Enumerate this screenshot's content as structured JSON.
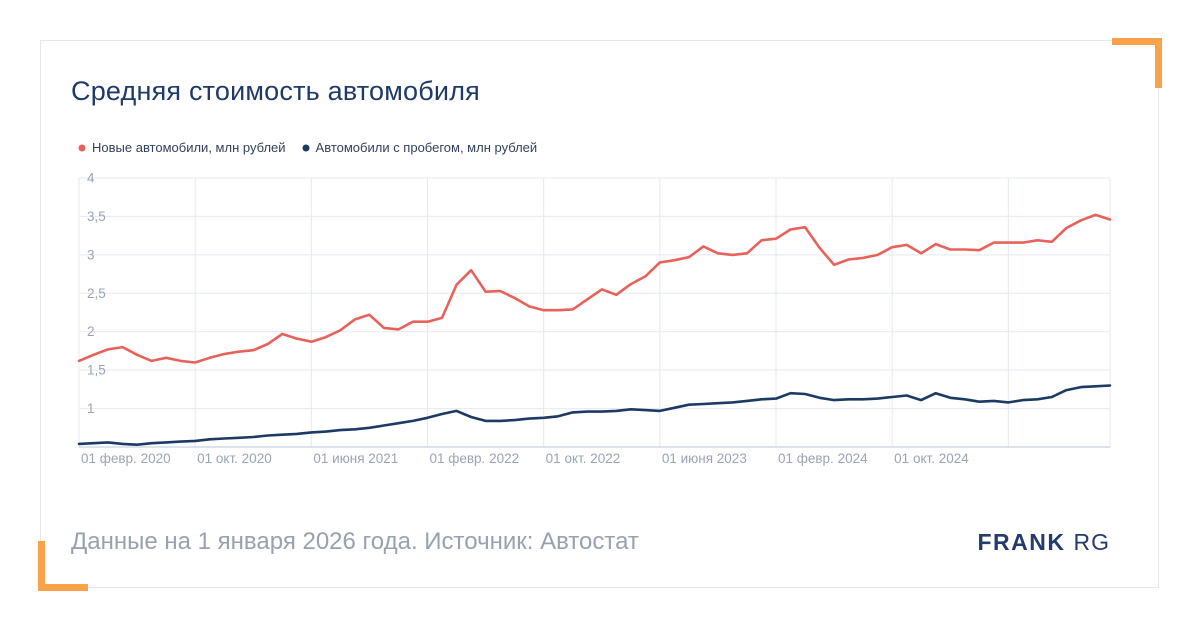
{
  "title": "Средняя стоимость автомобиля",
  "legend": [
    {
      "label": "Новые автомобили, млн рублей",
      "color": "#E8625C"
    },
    {
      "label": "Автомобили с пробегом, млн рублей",
      "color": "#1C3A64"
    }
  ],
  "footer": {
    "caption": "Данные на 1 января 2026 года. Источник: Автостат",
    "logo_bold": "FRANK",
    "logo_light": "RG"
  },
  "colors": {
    "accent_orange": "#F9A24A",
    "new_cars_red": "#E8625C",
    "used_cars_navy": "#1C3A64",
    "grid": "#E4E9F1",
    "axis_line": "#C9D1DD",
    "axis_text": "#9AA4B5",
    "title_navy": "#1F3A68",
    "caption_gray": "#99A1B0"
  },
  "chart_data": {
    "type": "line",
    "title": "Средняя стоимость автомобиля",
    "x_unit": "month",
    "x_start": "2020-02",
    "x_end": "2026-01",
    "ylim": [
      0.5,
      4
    ],
    "grid": true,
    "legend_position": "top-left",
    "y_ticks": [
      {
        "value": 4,
        "label": "4"
      },
      {
        "value": 3.5,
        "label": "3,5"
      },
      {
        "value": 3,
        "label": "3"
      },
      {
        "value": 2.5,
        "label": "2,5"
      },
      {
        "value": 2,
        "label": "2"
      },
      {
        "value": 1.5,
        "label": "1,5"
      },
      {
        "value": 1,
        "label": "1"
      }
    ],
    "x_ticks": [
      {
        "index": 0,
        "label": "01 февр. 2020"
      },
      {
        "index": 8,
        "label": "01 окт. 2020"
      },
      {
        "index": 16,
        "label": "01 июня 2021"
      },
      {
        "index": 24,
        "label": "01 февр. 2022"
      },
      {
        "index": 32,
        "label": "01 окт. 2022"
      },
      {
        "index": 40,
        "label": "01 июня 2023"
      },
      {
        "index": 48,
        "label": "01 февр. 2024"
      },
      {
        "index": 56,
        "label": "01 окт. 2024"
      },
      {
        "index": 64,
        "label": ""
      }
    ],
    "series": [
      {
        "name": "Новые автомобили, млн рублей",
        "color": "#E8625C",
        "values": [
          1.62,
          1.7,
          1.77,
          1.8,
          1.7,
          1.62,
          1.66,
          1.62,
          1.6,
          1.66,
          1.71,
          1.74,
          1.76,
          1.84,
          1.97,
          1.91,
          1.87,
          1.93,
          2.02,
          2.16,
          2.22,
          2.05,
          2.03,
          2.13,
          2.13,
          2.18,
          2.61,
          2.8,
          2.52,
          2.53,
          2.44,
          2.33,
          2.28,
          2.28,
          2.29,
          2.42,
          2.55,
          2.48,
          2.62,
          2.72,
          2.9,
          2.93,
          2.97,
          3.11,
          3.02,
          3.0,
          3.02,
          3.19,
          3.21,
          3.33,
          3.36,
          3.09,
          2.87,
          2.94,
          2.96,
          3.0,
          3.1,
          3.13,
          3.02,
          3.14,
          3.07,
          3.07,
          3.06,
          3.16,
          3.16,
          3.16,
          3.19,
          3.17,
          3.35,
          3.45,
          3.52,
          3.46
        ]
      },
      {
        "name": "Автомобили с пробегом, млн рублей",
        "color": "#1C3A64",
        "values": [
          0.54,
          0.55,
          0.56,
          0.54,
          0.53,
          0.55,
          0.56,
          0.57,
          0.58,
          0.6,
          0.61,
          0.62,
          0.63,
          0.65,
          0.66,
          0.67,
          0.69,
          0.7,
          0.72,
          0.73,
          0.75,
          0.78,
          0.81,
          0.84,
          0.88,
          0.93,
          0.97,
          0.89,
          0.84,
          0.84,
          0.85,
          0.87,
          0.88,
          0.9,
          0.95,
          0.96,
          0.96,
          0.97,
          0.99,
          0.98,
          0.97,
          1.01,
          1.05,
          1.06,
          1.07,
          1.08,
          1.1,
          1.12,
          1.13,
          1.2,
          1.19,
          1.14,
          1.11,
          1.12,
          1.12,
          1.13,
          1.15,
          1.17,
          1.11,
          1.2,
          1.14,
          1.12,
          1.09,
          1.1,
          1.08,
          1.11,
          1.12,
          1.15,
          1.24,
          1.28,
          1.29,
          1.3
        ]
      }
    ]
  }
}
